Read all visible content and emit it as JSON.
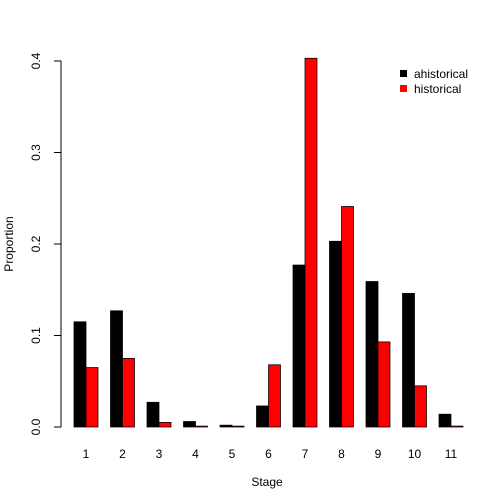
{
  "chart_data": {
    "type": "bar",
    "title": "",
    "xlabel": "Stage",
    "ylabel": "Proportion",
    "categories": [
      "1",
      "2",
      "3",
      "4",
      "5",
      "6",
      "7",
      "8",
      "9",
      "10",
      "11"
    ],
    "series": [
      {
        "name": "ahistorical",
        "color": "#000000",
        "values": [
          0.115,
          0.127,
          0.027,
          0.006,
          0.002,
          0.023,
          0.177,
          0.203,
          0.159,
          0.146,
          0.014
        ]
      },
      {
        "name": "historical",
        "color": "#ff0000",
        "values": [
          0.065,
          0.075,
          0.005,
          0.001,
          0.001,
          0.068,
          0.403,
          0.241,
          0.093,
          0.045,
          0.001
        ]
      }
    ],
    "ylim": [
      0,
      0.4
    ],
    "yticks": [
      "0.0",
      "0.1",
      "0.2",
      "0.3",
      "0.4"
    ],
    "legend_position": "top-right",
    "grid": false
  }
}
